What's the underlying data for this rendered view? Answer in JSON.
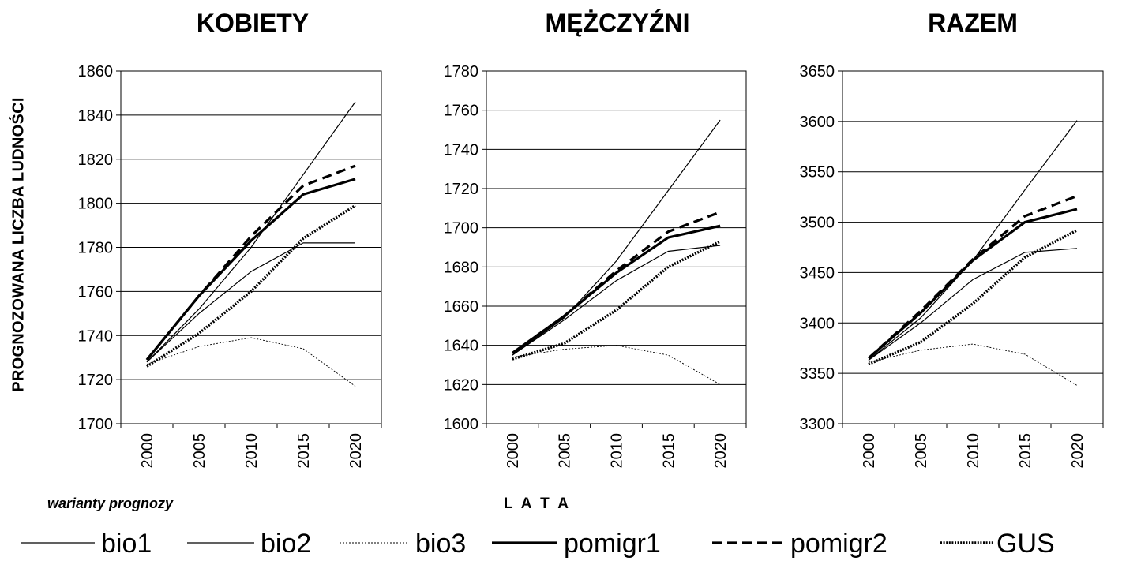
{
  "ylabel": "PROGNOZOWANA LICZBA LUDNOŚCI",
  "xlabel": "L A T A",
  "legend_title": "warianty prognozy",
  "legend": [
    {
      "name": "bio1",
      "style": "thin"
    },
    {
      "name": "bio2",
      "style": "thin"
    },
    {
      "name": "bio3",
      "style": "dotted-thin"
    },
    {
      "name": "pomigr1",
      "style": "thick"
    },
    {
      "name": "pomigr2",
      "style": "dashed"
    },
    {
      "name": "GUS",
      "style": "dotted-thick"
    }
  ],
  "chart_data": [
    {
      "type": "line",
      "title": "KOBIETY",
      "x": [
        "2000",
        "2005",
        "2010",
        "2015",
        "2020"
      ],
      "ylim": [
        1700,
        1860
      ],
      "yticks": [
        1700,
        1720,
        1740,
        1760,
        1780,
        1800,
        1820,
        1840,
        1860
      ],
      "grid": true,
      "series": [
        {
          "name": "bio1",
          "values": [
            1728,
            1752,
            1780,
            1813,
            1846
          ]
        },
        {
          "name": "bio2",
          "values": [
            1728,
            1750,
            1769,
            1782,
            1782
          ]
        },
        {
          "name": "bio3",
          "values": [
            1727,
            1735,
            1739,
            1734,
            1717
          ]
        },
        {
          "name": "pomigr1",
          "values": [
            1729,
            1758,
            1783,
            1804,
            1811
          ]
        },
        {
          "name": "pomigr2",
          "values": [
            1729,
            1758,
            1785,
            1808,
            1817
          ]
        },
        {
          "name": "GUS",
          "values": [
            1726,
            1741,
            1760,
            1784,
            1799
          ]
        }
      ]
    },
    {
      "type": "line",
      "title": "MĘŻCZYŹNI",
      "x": [
        "2000",
        "2005",
        "2010",
        "2015",
        "2020"
      ],
      "ylim": [
        1600,
        1780
      ],
      "yticks": [
        1600,
        1620,
        1640,
        1660,
        1680,
        1700,
        1720,
        1740,
        1760,
        1780
      ],
      "grid": true,
      "series": [
        {
          "name": "bio1",
          "values": [
            1635,
            1654,
            1683,
            1719,
            1755
          ]
        },
        {
          "name": "bio2",
          "values": [
            1635,
            1653,
            1673,
            1688,
            1691
          ]
        },
        {
          "name": "bio3",
          "values": [
            1634,
            1638,
            1640,
            1635,
            1620
          ]
        },
        {
          "name": "pomigr1",
          "values": [
            1636,
            1655,
            1677,
            1695,
            1701
          ]
        },
        {
          "name": "pomigr2",
          "values": [
            1636,
            1655,
            1678,
            1698,
            1708
          ]
        },
        {
          "name": "GUS",
          "values": [
            1633,
            1641,
            1658,
            1680,
            1693
          ]
        }
      ]
    },
    {
      "type": "line",
      "title": "RAZEM",
      "x": [
        "2000",
        "2005",
        "2010",
        "2015",
        "2020"
      ],
      "ylim": [
        3300,
        3650
      ],
      "yticks": [
        3300,
        3350,
        3400,
        3450,
        3500,
        3550,
        3600,
        3650
      ],
      "grid": true,
      "series": [
        {
          "name": "bio1",
          "values": [
            3363,
            3405,
            3462,
            3532,
            3601
          ]
        },
        {
          "name": "bio2",
          "values": [
            3363,
            3400,
            3443,
            3470,
            3474
          ]
        },
        {
          "name": "bio3",
          "values": [
            3361,
            3373,
            3379,
            3369,
            3338
          ]
        },
        {
          "name": "pomigr1",
          "values": [
            3365,
            3410,
            3462,
            3500,
            3513
          ]
        },
        {
          "name": "pomigr2",
          "values": [
            3365,
            3412,
            3463,
            3506,
            3526
          ]
        },
        {
          "name": "GUS",
          "values": [
            3359,
            3381,
            3419,
            3465,
            3492
          ]
        }
      ]
    }
  ]
}
